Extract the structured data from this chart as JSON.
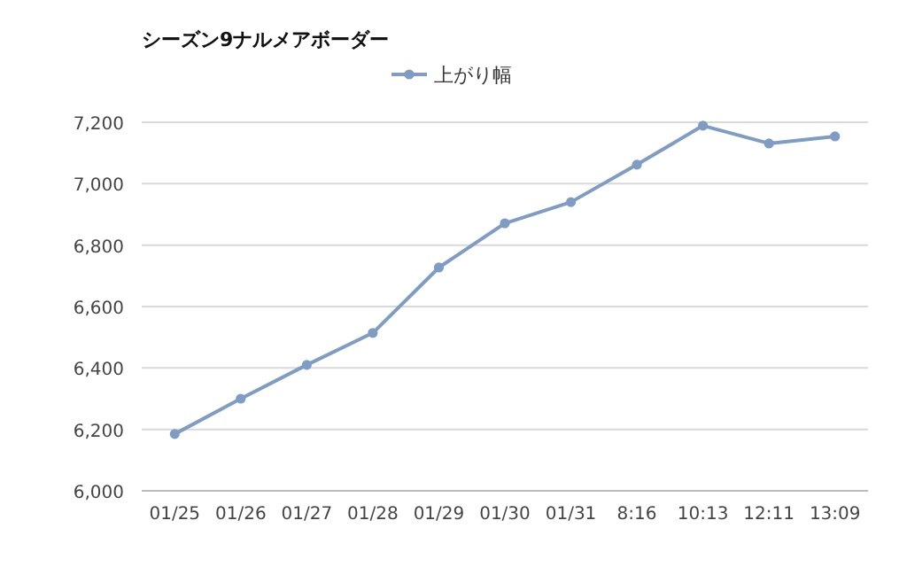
{
  "chart_data": {
    "type": "line",
    "title": "シーズン9ナルメアボーダー",
    "categories": [
      "01/25",
      "01/26",
      "01/27",
      "01/28",
      "01/29",
      "01/30",
      "01/31",
      "8:16",
      "10:13",
      "12:11",
      "13:09"
    ],
    "series": [
      {
        "name": "上がり幅",
        "color": "#7f9cc4",
        "values": [
          6185,
          6300,
          6410,
          6514,
          6727,
          6871,
          6940,
          7062,
          7189,
          7131,
          7154
        ]
      }
    ],
    "ylim": [
      6000,
      7200
    ],
    "yticks": [
      {
        "value": 6000,
        "label": "6,000"
      },
      {
        "value": 6200,
        "label": "6,200"
      },
      {
        "value": 6400,
        "label": "6,400"
      },
      {
        "value": 6600,
        "label": "6,600"
      },
      {
        "value": 6800,
        "label": "6,800"
      },
      {
        "value": 7000,
        "label": "7,000"
      },
      {
        "value": 7200,
        "label": "7,200"
      }
    ],
    "grid": "y",
    "legend": "top",
    "marker": "circle",
    "line_style": "solid"
  }
}
